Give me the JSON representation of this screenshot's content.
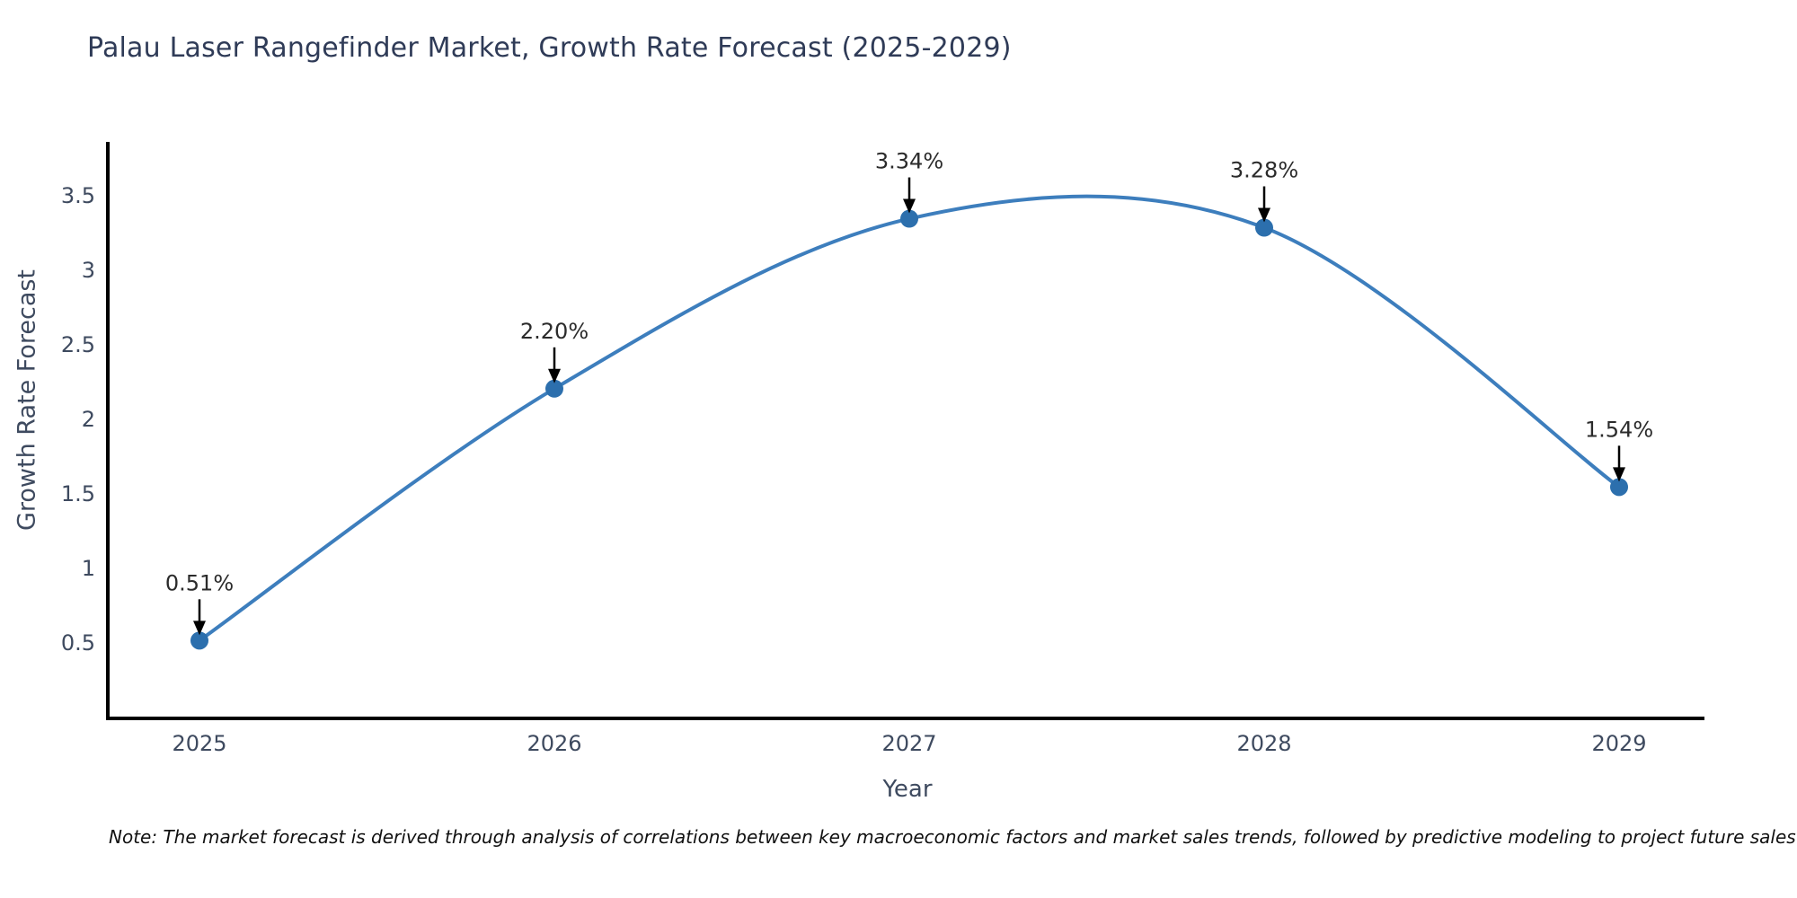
{
  "page": {
    "background": "#ffffff"
  },
  "chart_data": {
    "type": "line",
    "title": "Palau Laser Rangefinder Market, Growth Rate Forecast (2025-2029)",
    "xlabel": "Year",
    "ylabel": "Growth Rate Forecast",
    "categories": [
      "2025",
      "2026",
      "2027",
      "2028",
      "2029"
    ],
    "values": [
      0.51,
      2.2,
      3.34,
      3.28,
      1.54
    ],
    "point_labels": [
      "0.51%",
      "2.20%",
      "3.34%",
      "3.28%",
      "1.54%"
    ],
    "ytick_labels": [
      "0.5",
      "1",
      "1.5",
      "2",
      "2.5",
      "3",
      "3.5"
    ],
    "yticks": [
      0.5,
      1,
      1.5,
      2,
      2.5,
      3,
      3.5
    ],
    "ylim": [
      0,
      3.85
    ],
    "line_shape": "spline",
    "markers": true,
    "grid": false,
    "legend": "none",
    "annotations": "value labels with downward arrows above each point",
    "colors": {
      "line": "#3d7ebd",
      "marker": "#2c6fad",
      "axis": "#000000",
      "tick_label": "#3e4a5f",
      "axis_label": "#3e4a5f",
      "title": "#2f3b57",
      "annotation_text": "#2b2b2b",
      "arrow": "#000000",
      "note_text": "#111111",
      "background": "#ffffff"
    }
  },
  "footer": {
    "note": "Note: The market forecast is derived through analysis of correlations between key macroeconomic factors and market sales trends, followed by predictive modeling to project future sales"
  }
}
